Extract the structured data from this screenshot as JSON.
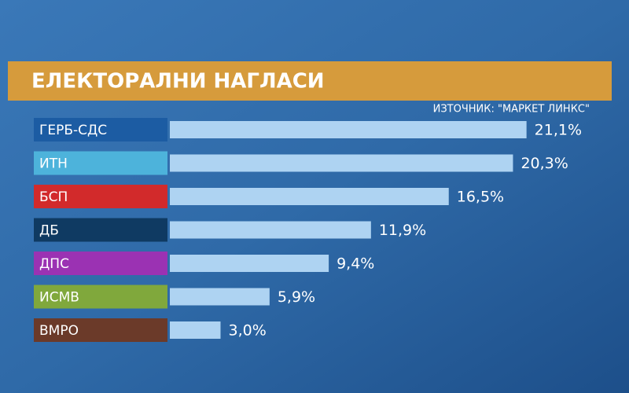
{
  "chart_data": {
    "type": "hbar",
    "title": "ЕЛЕКТОРАЛНИ НАГЛАСИ",
    "subtitle": "ИЗТОЧНИК: \"МАРКЕТ ЛИНКС\"",
    "categories": [
      "ГЕРБ-СДС",
      "ИТН",
      "БСП",
      "ДБ",
      "ДПС",
      "ИСМВ",
      "ВМРО"
    ],
    "values": [
      21.1,
      20.3,
      16.5,
      11.9,
      9.4,
      5.9,
      3.0
    ],
    "value_labels": [
      "21,1%",
      "20,3%",
      "16,5%",
      "11,9%",
      "9,4%",
      "5,9%",
      "3,0%"
    ],
    "color": "#aed3f2",
    "label_colors": [
      "#1c5ca3",
      "#4db3db",
      "#d22a2b",
      "#0f3a62",
      "#9b32b3",
      "#80a83c",
      "#6b3a29"
    ]
  }
}
